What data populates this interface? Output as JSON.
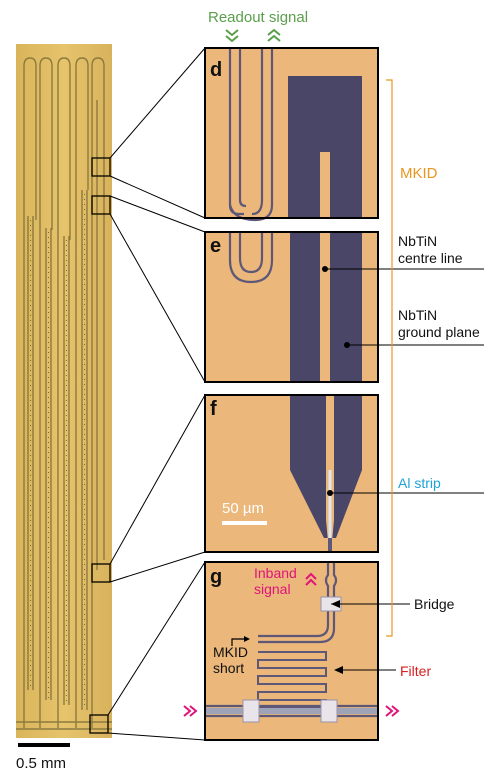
{
  "header": {
    "readout_signal": "Readout signal"
  },
  "panels": {
    "d": {
      "letter": "d"
    },
    "e": {
      "letter": "e"
    },
    "f": {
      "letter": "f"
    },
    "g": {
      "letter": "g"
    }
  },
  "annotations": {
    "mkid": "MKID",
    "centre_line": [
      "NbTiN",
      "centre line"
    ],
    "ground_plane": [
      "NbTiN",
      "ground plane"
    ],
    "al_strip": "Al strip",
    "scale_bar_panel": "50 µm",
    "inband_signal": [
      "Inband",
      "signal"
    ],
    "bridge": "Bridge",
    "mkid_short": [
      "MKID",
      "short"
    ],
    "filter": "Filter"
  },
  "overview": {
    "scale_bar": "0.5 mm"
  },
  "colors": {
    "readout_green": "#5a9e4a",
    "mkid_orange": "#e8961e",
    "al_blue": "#1fa3d8",
    "inband_magenta": "#e0137a",
    "filter_red": "#d81e1e",
    "chip_bg": "#ebb77a",
    "nbtin_dark": "#4a4668"
  },
  "icons": [
    "double-chevron-down-icon",
    "double-chevron-up-icon",
    "double-chevron-right-icon",
    "arrow-right-icon"
  ]
}
